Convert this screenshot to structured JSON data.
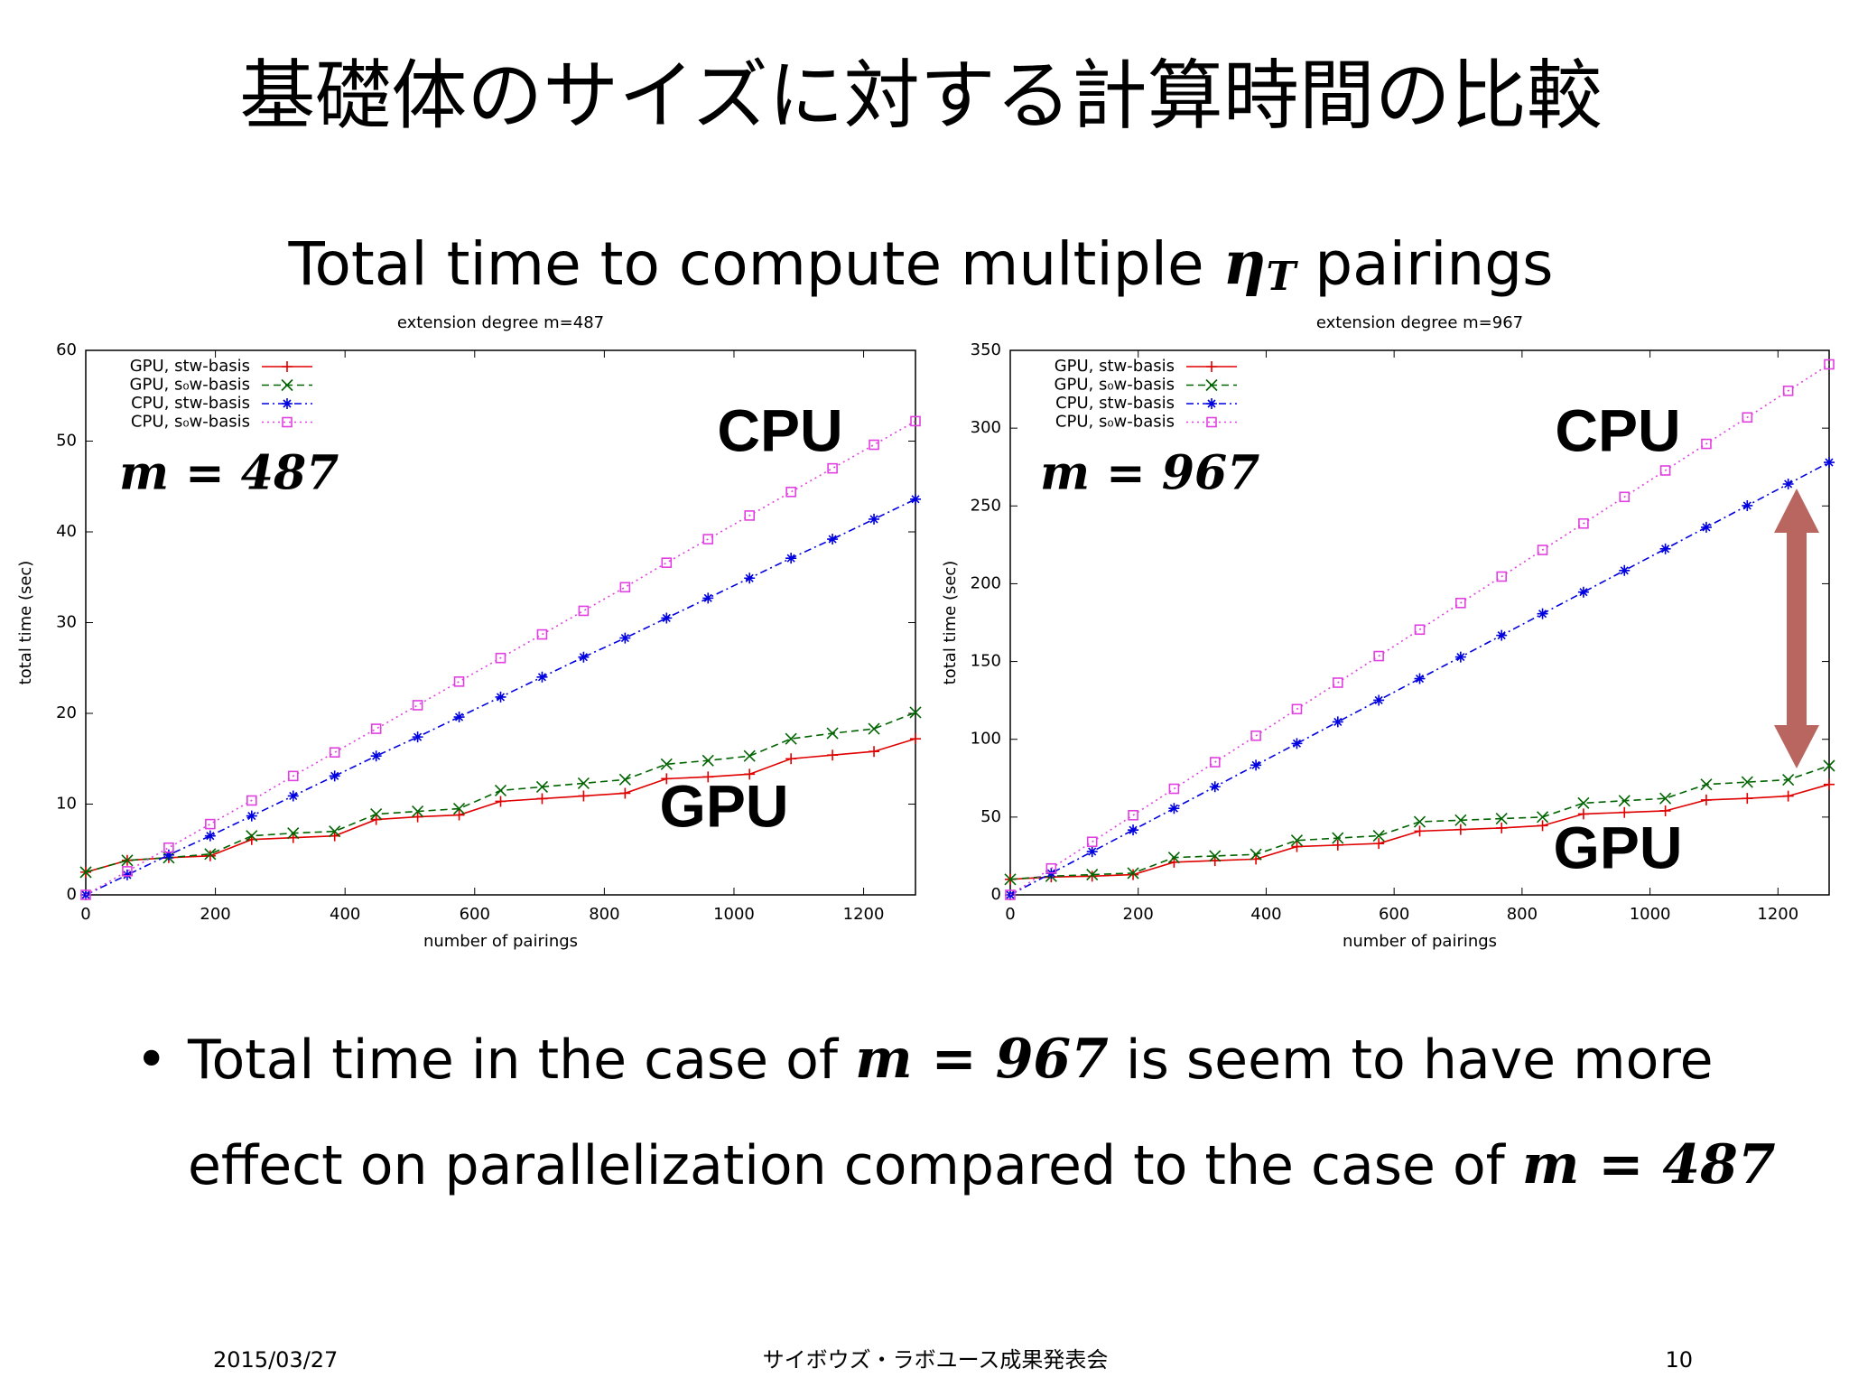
{
  "title": "基礎体のサイズに対する計算時間の比較",
  "subtitle": {
    "before": "Total time to compute multiple",
    "symbol": "η",
    "sub": "T",
    "after": "pairings"
  },
  "chart_data": [
    {
      "type": "line",
      "title": "extension degree m=487",
      "xlabel": "number of pairings",
      "ylabel": "total time (sec)",
      "xlim": [
        0,
        1280
      ],
      "xticks": [
        0,
        200,
        400,
        600,
        800,
        1000,
        1200
      ],
      "ylim": [
        0,
        60
      ],
      "yticks": [
        0,
        10,
        20,
        30,
        40,
        50,
        60
      ],
      "legend": "upper left",
      "annotations": [
        "m = 487",
        "CPU",
        "GPU"
      ],
      "x": [
        0,
        64,
        128,
        192,
        256,
        320,
        384,
        448,
        512,
        576,
        640,
        704,
        768,
        832,
        896,
        960,
        1024,
        1088,
        1152,
        1216,
        1280
      ],
      "series": [
        {
          "name": "GPU, stw-basis",
          "color": "#e00000",
          "values": [
            2.5,
            3.8,
            4.1,
            4.3,
            6.1,
            6.3,
            6.5,
            8.3,
            8.6,
            8.8,
            10.3,
            10.6,
            10.9,
            11.2,
            12.8,
            13.0,
            13.3,
            15.0,
            15.4,
            15.8,
            17.2
          ]
        },
        {
          "name": "GPU, s₀w-basis",
          "color": "#006400",
          "values": [
            2.5,
            3.8,
            4.1,
            4.5,
            6.5,
            6.8,
            7.0,
            8.9,
            9.2,
            9.5,
            11.5,
            11.9,
            12.3,
            12.7,
            14.4,
            14.8,
            15.3,
            17.2,
            17.8,
            18.3,
            20.1
          ]
        },
        {
          "name": "CPU, stw-basis",
          "color": "#0000e0",
          "values": [
            0,
            2.2,
            4.4,
            6.5,
            8.7,
            10.9,
            13.1,
            15.3,
            17.4,
            19.6,
            21.8,
            24,
            26.2,
            28.3,
            30.5,
            32.7,
            34.9,
            37.1,
            39.2,
            41.4,
            43.6
          ]
        },
        {
          "name": "CPU, s₀w-basis",
          "color": "#e040e0",
          "values": [
            0,
            2.6,
            5.2,
            7.8,
            10.4,
            13.1,
            15.7,
            18.3,
            20.9,
            23.5,
            26.1,
            28.7,
            31.3,
            33.9,
            36.6,
            39.2,
            41.8,
            44.4,
            47,
            49.6,
            52.2
          ]
        }
      ]
    },
    {
      "type": "line",
      "title": "extension degree m=967",
      "xlabel": "number of pairings",
      "ylabel": "total time (sec)",
      "xlim": [
        0,
        1280
      ],
      "xticks": [
        0,
        200,
        400,
        600,
        800,
        1000,
        1200
      ],
      "ylim": [
        0,
        350
      ],
      "yticks": [
        0,
        50,
        100,
        150,
        200,
        250,
        300,
        350
      ],
      "legend": "upper left",
      "annotations": [
        "m = 967",
        "CPU",
        "GPU"
      ],
      "x": [
        0,
        64,
        128,
        192,
        256,
        320,
        384,
        448,
        512,
        576,
        640,
        704,
        768,
        832,
        896,
        960,
        1024,
        1088,
        1152,
        1216,
        1280
      ],
      "series": [
        {
          "name": "GPU, stw-basis",
          "color": "#e00000",
          "values": [
            10,
            11.5,
            12,
            13,
            21,
            22,
            23,
            31,
            32,
            33,
            41,
            42,
            43,
            44.5,
            52,
            53,
            54,
            61,
            62,
            63.5,
            71
          ]
        },
        {
          "name": "GPU, s₀w-basis",
          "color": "#006400",
          "values": [
            10,
            12,
            13,
            14,
            24,
            25,
            26,
            35,
            36.5,
            38,
            47,
            48,
            49,
            50,
            59,
            60.5,
            62,
            71,
            72.5,
            74,
            83
          ]
        },
        {
          "name": "CPU, stw-basis",
          "color": "#0000e0",
          "values": [
            0,
            13.9,
            27.8,
            41.7,
            55.6,
            69.5,
            83.4,
            97.3,
            111.2,
            125.1,
            139,
            152.9,
            166.8,
            180.7,
            194.6,
            208.5,
            222.4,
            236.3,
            250.2,
            264.1,
            278
          ]
        },
        {
          "name": "CPU, s₀w-basis",
          "color": "#e040e0",
          "values": [
            0,
            17,
            34.1,
            51.2,
            68.2,
            85.3,
            102.3,
            119.4,
            136.4,
            153.5,
            170.5,
            187.6,
            204.6,
            221.7,
            238.7,
            255.8,
            272.8,
            289.9,
            306.9,
            324,
            341
          ]
        }
      ]
    }
  ],
  "bullet": {
    "line1_before": "Total time in the case of",
    "line1_math": "m = 967",
    "line1_after": "is seem to have more",
    "line2_before": "effect on parallelization compared to the case of",
    "line2_math": "m = 487"
  },
  "footer": {
    "date": "2015/03/27",
    "event": "サイボウズ・ラボユース成果発表会",
    "page": "10"
  }
}
